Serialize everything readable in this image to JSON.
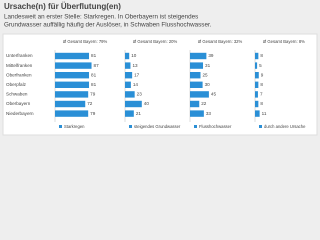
{
  "chart_data": {
    "type": "bar",
    "title": "Ursache(n) für Überflutung(en)",
    "subtitle": [
      "Landesweit an erster Stelle: Starkregen. In Oberbayern ist steigendes",
      "Grundwasser auffällig häufig der Auslöser, in Schwaben Flusshochwasser."
    ],
    "categories": [
      "Unterfranken",
      "Mittelfranken",
      "Oberfranken",
      "Oberpfalz",
      "Schwaben",
      "Oberbayern",
      "Niederbayern"
    ],
    "series": [
      {
        "name": "Starkregen",
        "color": "#2a8fd6",
        "average_label": "Ø Gesamt Bayern: 79%",
        "values": [
          81,
          87,
          81,
          81,
          79,
          72,
          79
        ]
      },
      {
        "name": "steigendes Grundwasser",
        "color": "#2a8fd6",
        "average_label": "Ø Gesamt Bayern: 20%",
        "values": [
          10,
          13,
          17,
          14,
          23,
          40,
          21
        ]
      },
      {
        "name": "Flusshochwasser",
        "color": "#2a8fd6",
        "average_label": "Ø Gesamt Bayern: 32%",
        "values": [
          39,
          31,
          25,
          30,
          45,
          22,
          33
        ]
      },
      {
        "name": "durch andere Ursache",
        "color": "#2a8fd6",
        "average_label": "Ø Gesamt Bayern: 8%",
        "values": [
          8,
          5,
          9,
          8,
          7,
          8,
          11
        ]
      }
    ]
  }
}
